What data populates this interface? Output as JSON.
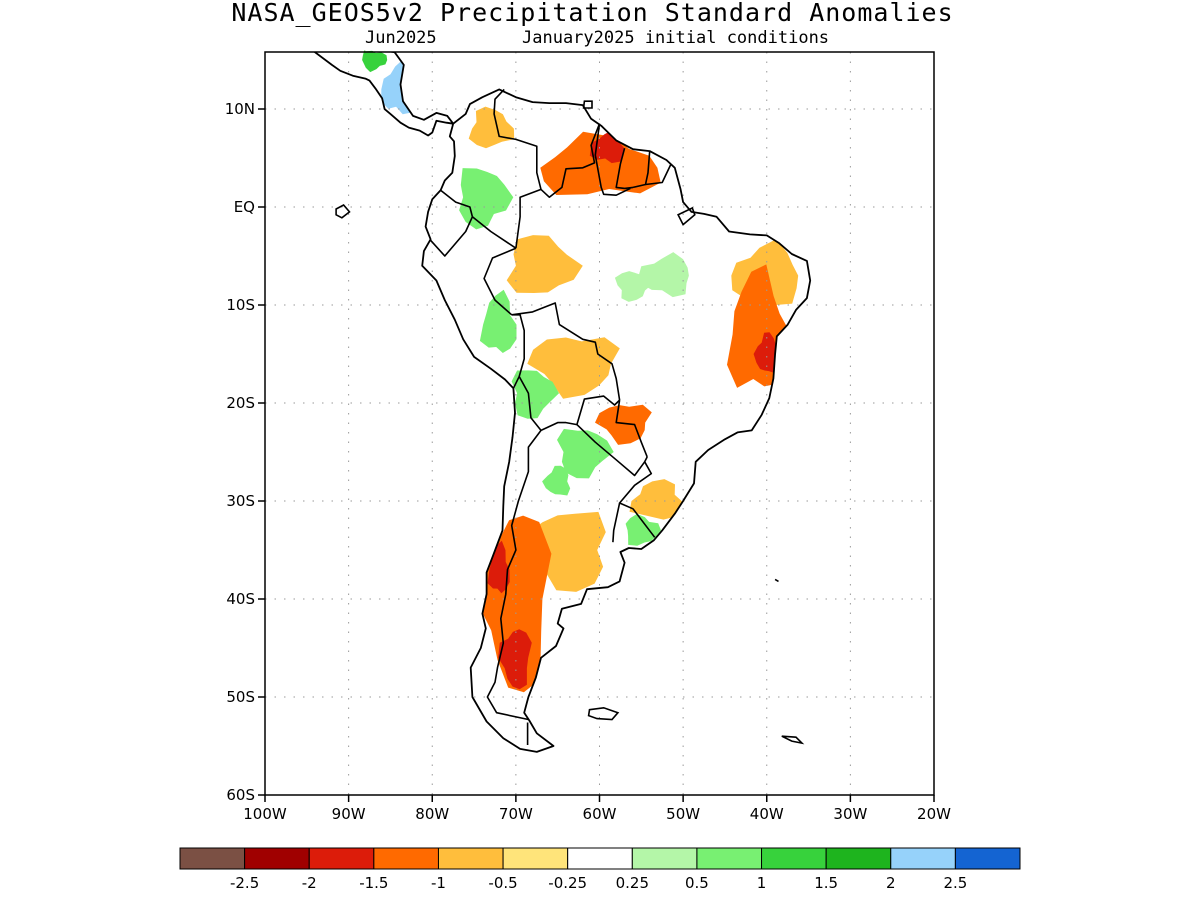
{
  "title": "NASA_GEOS5v2 Precipitation Standard Anomalies",
  "subtitle_left": "Jun2025",
  "subtitle_right": "January2025 initial conditions",
  "map": {
    "lon_range": [
      -100,
      -20
    ],
    "lat_range": [
      -60,
      16
    ],
    "lat_ticks": [
      {
        "value": 10,
        "label": "10N"
      },
      {
        "value": 0,
        "label": "EQ"
      },
      {
        "value": -10,
        "label": "10S"
      },
      {
        "value": -20,
        "label": "20S"
      },
      {
        "value": -30,
        "label": "30S"
      },
      {
        "value": -40,
        "label": "40S"
      },
      {
        "value": -50,
        "label": "50S"
      },
      {
        "value": -60,
        "label": "60S"
      }
    ],
    "lon_ticks": [
      {
        "value": -100,
        "label": "100W"
      },
      {
        "value": -90,
        "label": "90W"
      },
      {
        "value": -80,
        "label": "80W"
      },
      {
        "value": -70,
        "label": "70W"
      },
      {
        "value": -60,
        "label": "60W"
      },
      {
        "value": -50,
        "label": "50W"
      },
      {
        "value": -40,
        "label": "40W"
      },
      {
        "value": -30,
        "label": "30W"
      },
      {
        "value": -20,
        "label": "20W"
      }
    ],
    "grid": "dotted"
  },
  "colorbar": {
    "colors": [
      "#7b5044",
      "#a00000",
      "#dc1c0a",
      "#ff6a00",
      "#ffbe3c",
      "#ffe47a",
      "#ffffff",
      "#b4f6a8",
      "#78f072",
      "#37d23c",
      "#1eb41e",
      "#96d2fa",
      "#1464d2"
    ],
    "labels": [
      "-2.5",
      "-2",
      "-1.5",
      "-1",
      "-0.5",
      "-0.25",
      "0.25",
      "0.5",
      "1",
      "1.5",
      "2",
      "2.5"
    ]
  },
  "anomaly_regions": [
    {
      "name": "southern-andes-dry",
      "value": -1,
      "lon": -70,
      "lat": -40,
      "rlon": 4,
      "rlat": 9
    },
    {
      "name": "patagonia-very-dry",
      "value": -1.5,
      "lon": -70,
      "lat": -46,
      "rlon": 1.8,
      "rlat": 3
    },
    {
      "name": "central-chile-very-dry",
      "value": -1.5,
      "lon": -72,
      "lat": -37,
      "rlon": 1.2,
      "rlat": 2.5
    },
    {
      "name": "pampas-dry",
      "value": -0.5,
      "lon": -64,
      "lat": -35,
      "rlon": 5,
      "rlat": 4
    },
    {
      "name": "northeast-brazil-dry",
      "value": -1,
      "lon": -41,
      "lat": -13,
      "rlon": 3.5,
      "rlat": 6
    },
    {
      "name": "northeast-brazil-very-dry",
      "value": -1.5,
      "lon": -40,
      "lat": -15,
      "rlon": 1.3,
      "rlat": 2
    },
    {
      "name": "northeast-coast-dry",
      "value": -0.5,
      "lon": -40,
      "lat": -7,
      "rlon": 4,
      "rlat": 3
    },
    {
      "name": "venezuela-guianas-dry",
      "value": -1,
      "lon": -60,
      "lat": 4,
      "rlon": 7,
      "rlat": 3
    },
    {
      "name": "guiana-highlands-very-dry",
      "value": -1.5,
      "lon": -59,
      "lat": 6,
      "rlon": 2,
      "rlat": 1.5
    },
    {
      "name": "amazon-west-dry",
      "value": -0.5,
      "lon": -67,
      "lat": -6,
      "rlon": 4,
      "rlat": 3
    },
    {
      "name": "bolivia-dry",
      "value": -0.5,
      "lon": -63,
      "lat": -16,
      "rlon": 5,
      "rlat": 3
    },
    {
      "name": "chaco-dry",
      "value": -1,
      "lon": -57,
      "lat": -22,
      "rlon": 3,
      "rlat": 2
    },
    {
      "name": "colombia-dry",
      "value": -0.5,
      "lon": -73,
      "lat": 8,
      "rlon": 2.5,
      "rlat": 2
    },
    {
      "name": "southern-brazil-dry",
      "value": -0.5,
      "lon": -53,
      "lat": -30,
      "rlon": 3,
      "rlat": 2
    },
    {
      "name": "colombia-wet",
      "value": 1,
      "lon": -74,
      "lat": 1,
      "rlon": 3,
      "rlat": 3
    },
    {
      "name": "peru-wet",
      "value": 1,
      "lon": -72,
      "lat": -12,
      "rlon": 2,
      "rlat": 3
    },
    {
      "name": "altiplano-wet",
      "value": 1,
      "lon": -68,
      "lat": -19,
      "rlon": 2.5,
      "rlat": 2.5
    },
    {
      "name": "paraguay-wet",
      "value": 1,
      "lon": -62,
      "lat": -25,
      "rlon": 3,
      "rlat": 2.5
    },
    {
      "name": "uruguay-wet",
      "value": 1,
      "lon": -55,
      "lat": -33,
      "rlon": 2,
      "rlat": 1.5
    },
    {
      "name": "argentina-north-wet",
      "value": 1,
      "lon": -65,
      "lat": -28,
      "rlon": 1.5,
      "rlat": 1.5
    },
    {
      "name": "amazon-east-wet",
      "value": 0.5,
      "lon": -52,
      "lat": -7,
      "rlon": 3,
      "rlat": 2
    },
    {
      "name": "amazon-center-wet",
      "value": 0.5,
      "lon": -56,
      "lat": -8,
      "rlon": 2,
      "rlat": 1.5
    },
    {
      "name": "central-america-wet",
      "value": 2.5,
      "lon": -84,
      "lat": 12,
      "rlon": 2,
      "rlat": 2.5
    },
    {
      "name": "central-america-moist",
      "value": 1.5,
      "lon": -87,
      "lat": 15,
      "rlon": 1.5,
      "rlat": 1
    }
  ]
}
